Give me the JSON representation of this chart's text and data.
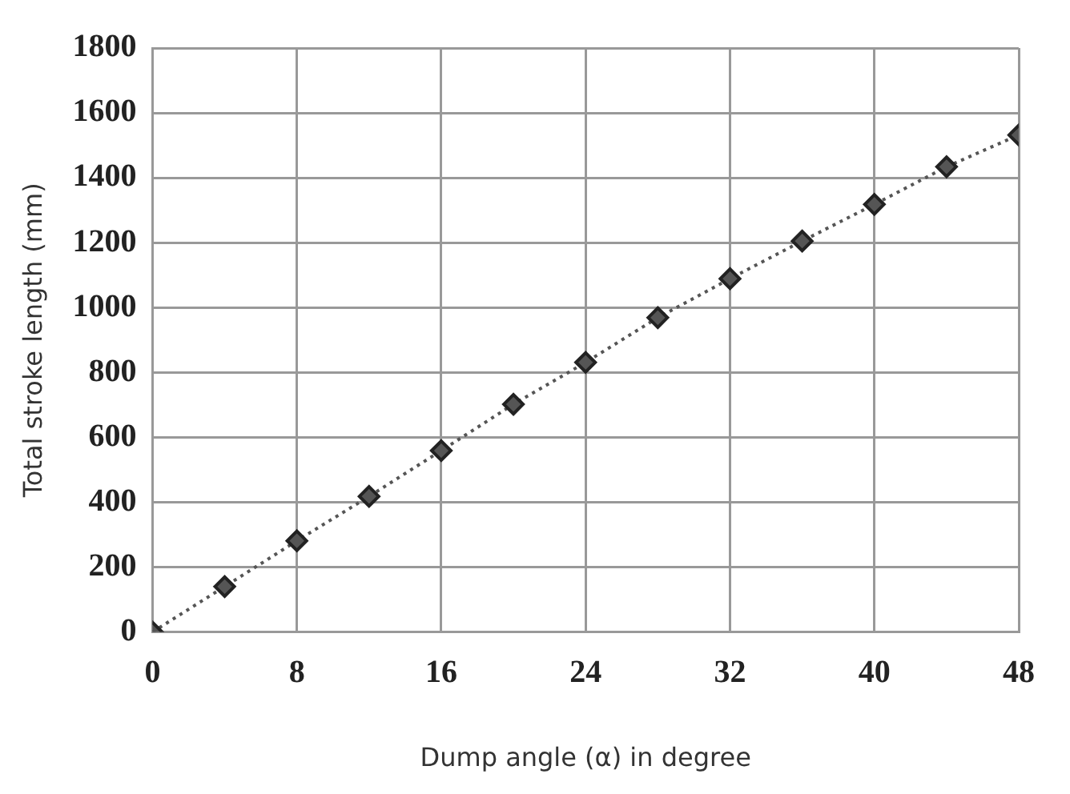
{
  "chart_data": {
    "type": "line",
    "xlabel": "Dump angle (α) in degree",
    "ylabel": "Total stroke length (mm)",
    "x": [
      0,
      4,
      8,
      12,
      16,
      20,
      24,
      28,
      32,
      36,
      40,
      44,
      48
    ],
    "series": [
      {
        "color": "#555555",
        "values": [
          0,
          140,
          281,
          418,
          559,
          702,
          831,
          969,
          1089,
          1205,
          1318,
          1434,
          1532
        ]
      }
    ],
    "xlim": [
      0,
      48
    ],
    "xticks": [
      0,
      8,
      16,
      24,
      32,
      40,
      48
    ],
    "ylim": [
      0,
      1800
    ],
    "yticks": [
      0,
      200,
      400,
      600,
      800,
      1000,
      1200,
      1400,
      1600,
      1800
    ],
    "grid": true,
    "legend": false,
    "marker": "diamond",
    "line_style": "dotted"
  }
}
